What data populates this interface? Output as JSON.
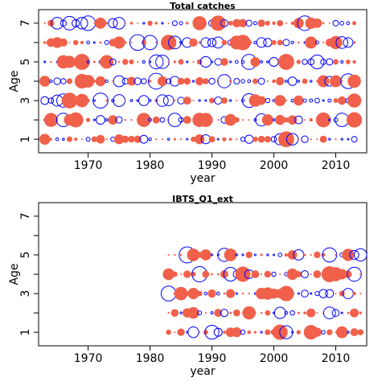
{
  "chart_data": [
    {
      "type": "scatter",
      "subtype": "bubble-residuals",
      "title": "Total catches",
      "xlabel": "year",
      "ylabel": "Age",
      "xlim": [
        1962,
        2015
      ],
      "ylim": [
        0.3,
        7.7
      ],
      "xticks": [
        1970,
        1980,
        1990,
        2000,
        2010
      ],
      "yticks": [
        1,
        2,
        3,
        4,
        5,
        6,
        7
      ],
      "ytick_labels_shown": [
        1,
        3,
        5,
        7
      ],
      "ages": [
        1,
        2,
        3,
        4,
        5,
        6,
        7
      ],
      "year_start": 1963,
      "year_end": 2013,
      "colors": {
        "positive": "#f0604a",
        "negative": "#0000ff"
      },
      "seed": 17
    },
    {
      "type": "scatter",
      "subtype": "bubble-residuals",
      "title": "IBTS_Q1_ext",
      "xlabel": "year",
      "ylabel": "Age",
      "xlim": [
        1962,
        2015
      ],
      "ylim": [
        0.3,
        7.7
      ],
      "xticks": [
        1970,
        1980,
        1990,
        2000,
        2010
      ],
      "yticks": [
        1,
        2,
        3,
        4,
        5,
        6,
        7
      ],
      "ytick_labels_shown": [
        1,
        3,
        5,
        7
      ],
      "ages": [
        1,
        2,
        3,
        4,
        5
      ],
      "year_start": 1983,
      "year_end": 2014,
      "colors": {
        "positive": "#f0604a",
        "negative": "#0000ff"
      },
      "seed": 91
    }
  ]
}
